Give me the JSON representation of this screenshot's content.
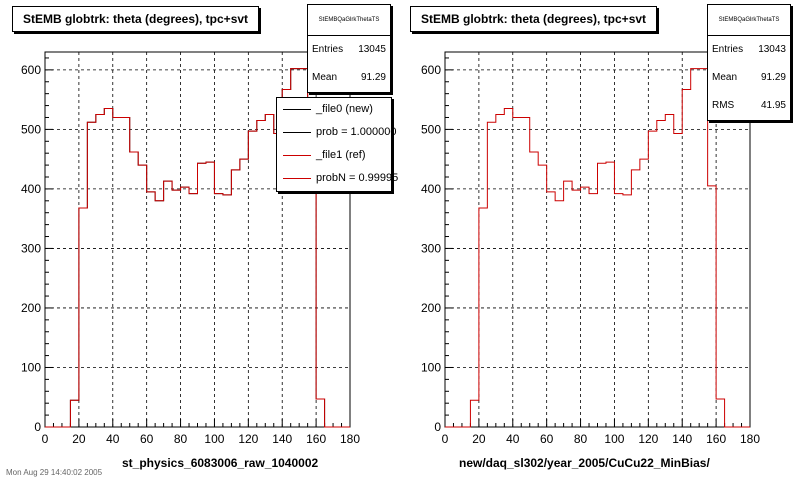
{
  "chart_data": [
    {
      "type": "histogram",
      "title": "StEMB globtrk: theta (degrees), tpc+svt",
      "xlabel": "st_physics_6083006_raw_1040002",
      "ylabel": "",
      "xlim": [
        0,
        180
      ],
      "ylim": [
        0,
        630
      ],
      "x_ticks": [
        "0",
        "20",
        "40",
        "60",
        "80",
        "100",
        "120",
        "140",
        "160",
        "180"
      ],
      "y_ticks": [
        "0",
        "100",
        "200",
        "300",
        "400",
        "500",
        "600"
      ],
      "grid": true,
      "bin_edges": [
        0,
        5,
        10,
        15,
        20,
        25,
        30,
        35,
        40,
        45,
        50,
        55,
        60,
        65,
        70,
        75,
        80,
        85,
        90,
        95,
        100,
        105,
        110,
        115,
        120,
        125,
        130,
        135,
        140,
        145,
        150,
        155,
        160,
        165,
        170,
        175,
        180
      ],
      "series": [
        {
          "name": "_file0 (new)",
          "color": "#000000",
          "values": [
            0,
            0,
            0,
            45,
            368,
            512,
            525,
            535,
            520,
            520,
            462,
            440,
            395,
            380,
            413,
            398,
            403,
            392,
            443,
            445,
            392,
            390,
            432,
            450,
            497,
            515,
            525,
            493,
            567,
            602,
            602,
            405,
            47,
            0,
            0,
            0
          ]
        },
        {
          "name": "_file1 (ref)",
          "color": "#cc0000",
          "values": [
            0,
            0,
            0,
            45,
            368,
            512,
            525,
            535,
            520,
            520,
            462,
            440,
            395,
            380,
            413,
            398,
            403,
            392,
            443,
            445,
            392,
            390,
            432,
            450,
            497,
            515,
            525,
            493,
            567,
            602,
            602,
            405,
            47,
            0,
            0,
            0
          ]
        }
      ],
      "stats": {
        "name": "StEMBQaGlrkThetaTS",
        "entries": "13045",
        "mean": "91.29"
      },
      "legend": [
        "_file0 (new)",
        "prob = 1.000000",
        "_file1 (ref)",
        "probN = 0.99995"
      ],
      "legend_position": "top-right"
    },
    {
      "type": "histogram",
      "title": "StEMB globtrk: theta (degrees), tpc+svt",
      "xlabel": "new/daq_sl302/year_2005/CuCu22_MinBias/",
      "ylabel": "",
      "xlim": [
        0,
        180
      ],
      "ylim": [
        0,
        630
      ],
      "x_ticks": [
        "0",
        "20",
        "40",
        "60",
        "80",
        "100",
        "120",
        "140",
        "160",
        "180"
      ],
      "y_ticks": [
        "0",
        "100",
        "200",
        "300",
        "400",
        "500",
        "600"
      ],
      "grid": true,
      "bin_edges": [
        0,
        5,
        10,
        15,
        20,
        25,
        30,
        35,
        40,
        45,
        50,
        55,
        60,
        65,
        70,
        75,
        80,
        85,
        90,
        95,
        100,
        105,
        110,
        115,
        120,
        125,
        130,
        135,
        140,
        145,
        150,
        155,
        160,
        165,
        170,
        175,
        180
      ],
      "series": [
        {
          "name": "",
          "color": "#cc0000",
          "values": [
            0,
            0,
            0,
            45,
            368,
            512,
            525,
            535,
            520,
            520,
            462,
            440,
            395,
            380,
            413,
            398,
            403,
            392,
            443,
            445,
            392,
            390,
            432,
            450,
            497,
            515,
            525,
            493,
            567,
            602,
            602,
            405,
            47,
            0,
            0,
            0
          ]
        }
      ],
      "stats": {
        "name": "StEMBQaGlrkThetaTS",
        "entries": "13043",
        "mean": "91.29",
        "rms": "41.95"
      }
    }
  ],
  "labels": {
    "entries": "Entries",
    "mean": "Mean",
    "rms": "RMS"
  },
  "footer": "Mon Aug 29 14:40:02 2005"
}
